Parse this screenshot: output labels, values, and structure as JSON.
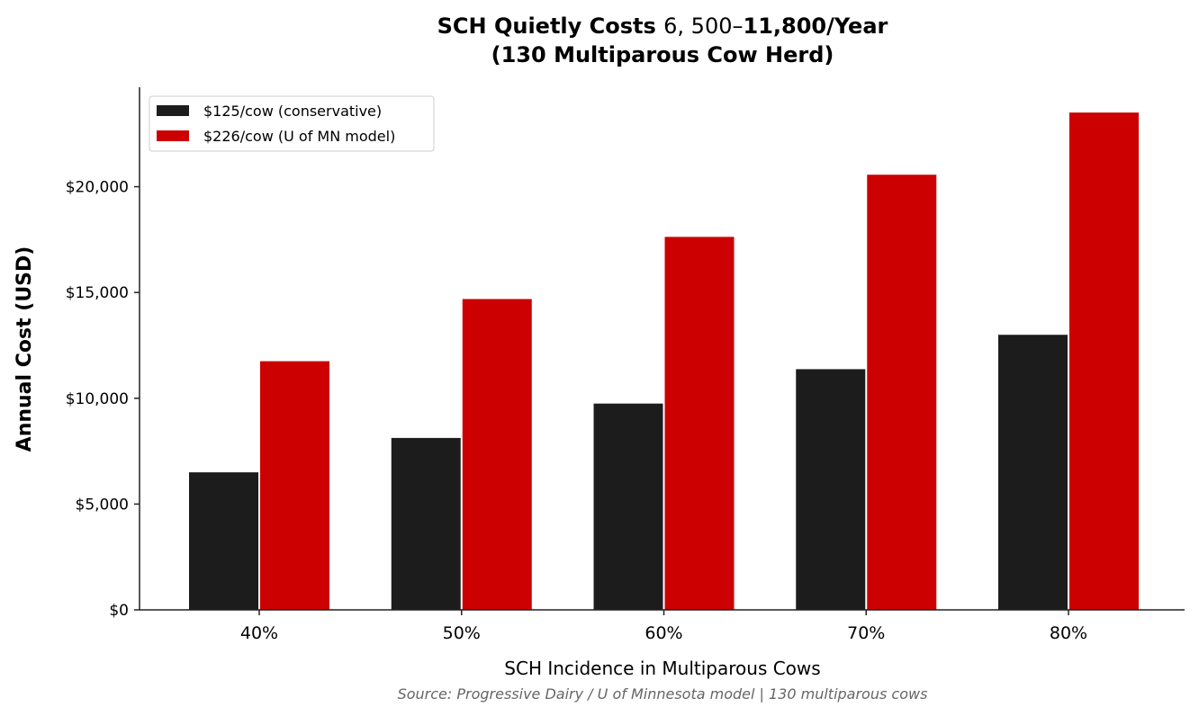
{
  "chart_data": {
    "type": "bar",
    "title_line1": "SCH Quietly Costs $6,500–$11,800/Year",
    "title_line1_parts": [
      "SCH Quietly Costs ",
      "6, 500–",
      "11,800/Year"
    ],
    "title_line2": "(130 Multiparous Cow Herd)",
    "xlabel": "SCH Incidence in Multiparous Cows",
    "ylabel": "Annual Cost (USD)",
    "source": "Source: Progressive Dairy / U of Minnesota model | 130 multiparous cows",
    "categories": [
      "40%",
      "50%",
      "60%",
      "70%",
      "80%"
    ],
    "series": [
      {
        "name": "$125/cow (conservative)",
        "color": "#1c1c1c",
        "values": [
          6500,
          8125,
          9750,
          11375,
          13000
        ]
      },
      {
        "name": "$226/cow (U of MN model)",
        "color": "#cc0000",
        "values": [
          11752,
          14690,
          17628,
          20566,
          23504
        ]
      }
    ],
    "ylim": [
      0,
      24700
    ],
    "yticks": [
      0,
      5000,
      10000,
      15000,
      20000
    ],
    "ytick_labels": [
      "$0",
      "$5,000",
      "$10,000",
      "$15,000",
      "$20,000"
    ],
    "legend_position": "top-left",
    "grid": false
  }
}
